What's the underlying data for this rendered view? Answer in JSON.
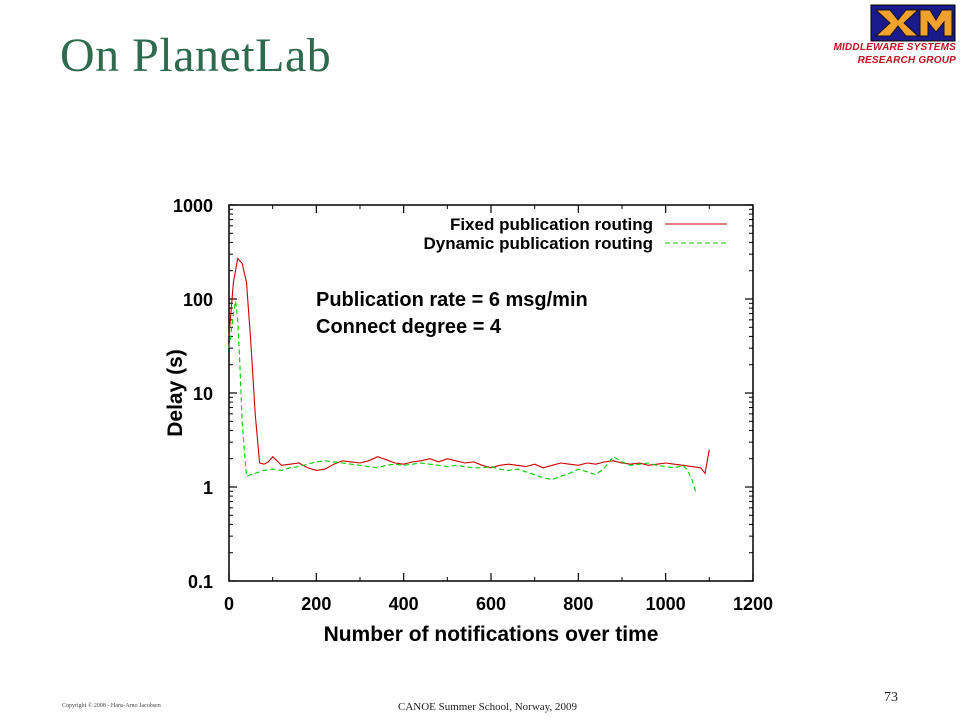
{
  "slide": {
    "title": "On PlanetLab",
    "logo_line1": "MIDDLEWARE SYSTEMS",
    "logo_line2": "RESEARCH GROUP",
    "copyright": "Copyright © 2008 - Hans-Arno Jacobsen",
    "footer": "CANOE Summer School, Norway, 2009",
    "page_number": "73"
  },
  "colors": {
    "title": "#2e6b4e",
    "logo_text": "#c1121f",
    "fixed_series": "#cc0000",
    "dynamic_series": "#00cc00"
  },
  "chart_data": {
    "type": "line",
    "title": "",
    "xlabel": "Number of notifications over time",
    "ylabel": "Delay (s)",
    "xlim": [
      0,
      1200
    ],
    "ylim": [
      0.1,
      1000
    ],
    "y_scale": "log",
    "grid": false,
    "legend_position": "top-right",
    "x_ticks": [
      "0",
      "200",
      "400",
      "600",
      "800",
      "1000",
      "1200"
    ],
    "y_ticks": [
      "0.1",
      "1",
      "10",
      "100",
      "1000"
    ],
    "annotations": [
      "Publication rate = 6 msg/min",
      "Connect degree = 4"
    ],
    "series": [
      {
        "name": "Fixed publication routing",
        "style": "solid",
        "points": [
          [
            0,
            40
          ],
          [
            10,
            150
          ],
          [
            20,
            270
          ],
          [
            30,
            240
          ],
          [
            40,
            150
          ],
          [
            50,
            35
          ],
          [
            60,
            6
          ],
          [
            70,
            1.8
          ],
          [
            80,
            1.75
          ],
          [
            90,
            1.85
          ],
          [
            100,
            2.1
          ],
          [
            110,
            1.9
          ],
          [
            120,
            1.7
          ],
          [
            140,
            1.75
          ],
          [
            160,
            1.8
          ],
          [
            180,
            1.6
          ],
          [
            200,
            1.5
          ],
          [
            220,
            1.55
          ],
          [
            240,
            1.75
          ],
          [
            260,
            1.9
          ],
          [
            280,
            1.85
          ],
          [
            300,
            1.8
          ],
          [
            320,
            1.9
          ],
          [
            340,
            2.1
          ],
          [
            360,
            1.95
          ],
          [
            380,
            1.8
          ],
          [
            400,
            1.75
          ],
          [
            420,
            1.85
          ],
          [
            440,
            1.9
          ],
          [
            460,
            2.0
          ],
          [
            480,
            1.85
          ],
          [
            500,
            2.0
          ],
          [
            520,
            1.9
          ],
          [
            540,
            1.8
          ],
          [
            560,
            1.85
          ],
          [
            580,
            1.7
          ],
          [
            600,
            1.6
          ],
          [
            620,
            1.7
          ],
          [
            640,
            1.75
          ],
          [
            660,
            1.7
          ],
          [
            680,
            1.65
          ],
          [
            700,
            1.75
          ],
          [
            720,
            1.6
          ],
          [
            740,
            1.7
          ],
          [
            760,
            1.8
          ],
          [
            780,
            1.75
          ],
          [
            800,
            1.7
          ],
          [
            820,
            1.8
          ],
          [
            840,
            1.75
          ],
          [
            860,
            1.85
          ],
          [
            880,
            1.9
          ],
          [
            900,
            1.8
          ],
          [
            920,
            1.75
          ],
          [
            940,
            1.8
          ],
          [
            960,
            1.7
          ],
          [
            980,
            1.75
          ],
          [
            1000,
            1.8
          ],
          [
            1020,
            1.75
          ],
          [
            1040,
            1.7
          ],
          [
            1060,
            1.65
          ],
          [
            1080,
            1.6
          ],
          [
            1090,
            1.4
          ],
          [
            1100,
            2.5
          ]
        ]
      },
      {
        "name": "Dynamic publication routing",
        "style": "dashed",
        "points": [
          [
            0,
            30
          ],
          [
            10,
            70
          ],
          [
            15,
            95
          ],
          [
            20,
            60
          ],
          [
            25,
            20
          ],
          [
            30,
            5
          ],
          [
            35,
            2.5
          ],
          [
            40,
            1.3
          ],
          [
            50,
            1.35
          ],
          [
            60,
            1.4
          ],
          [
            80,
            1.5
          ],
          [
            100,
            1.55
          ],
          [
            120,
            1.5
          ],
          [
            140,
            1.6
          ],
          [
            160,
            1.65
          ],
          [
            180,
            1.75
          ],
          [
            200,
            1.85
          ],
          [
            220,
            1.9
          ],
          [
            240,
            1.85
          ],
          [
            260,
            1.8
          ],
          [
            280,
            1.75
          ],
          [
            300,
            1.7
          ],
          [
            320,
            1.65
          ],
          [
            340,
            1.6
          ],
          [
            360,
            1.7
          ],
          [
            380,
            1.75
          ],
          [
            400,
            1.7
          ],
          [
            420,
            1.75
          ],
          [
            440,
            1.8
          ],
          [
            460,
            1.75
          ],
          [
            480,
            1.7
          ],
          [
            500,
            1.65
          ],
          [
            520,
            1.7
          ],
          [
            540,
            1.65
          ],
          [
            560,
            1.6
          ],
          [
            580,
            1.6
          ],
          [
            600,
            1.65
          ],
          [
            620,
            1.55
          ],
          [
            640,
            1.5
          ],
          [
            660,
            1.55
          ],
          [
            680,
            1.45
          ],
          [
            700,
            1.35
          ],
          [
            720,
            1.25
          ],
          [
            740,
            1.2
          ],
          [
            760,
            1.3
          ],
          [
            780,
            1.4
          ],
          [
            800,
            1.55
          ],
          [
            820,
            1.45
          ],
          [
            840,
            1.35
          ],
          [
            860,
            1.6
          ],
          [
            880,
            2.1
          ],
          [
            900,
            1.85
          ],
          [
            920,
            1.7
          ],
          [
            940,
            1.75
          ],
          [
            960,
            1.8
          ],
          [
            980,
            1.7
          ],
          [
            1000,
            1.65
          ],
          [
            1020,
            1.6
          ],
          [
            1040,
            1.7
          ],
          [
            1050,
            1.5
          ],
          [
            1060,
            1.2
          ],
          [
            1070,
            0.85
          ]
        ]
      }
    ]
  }
}
